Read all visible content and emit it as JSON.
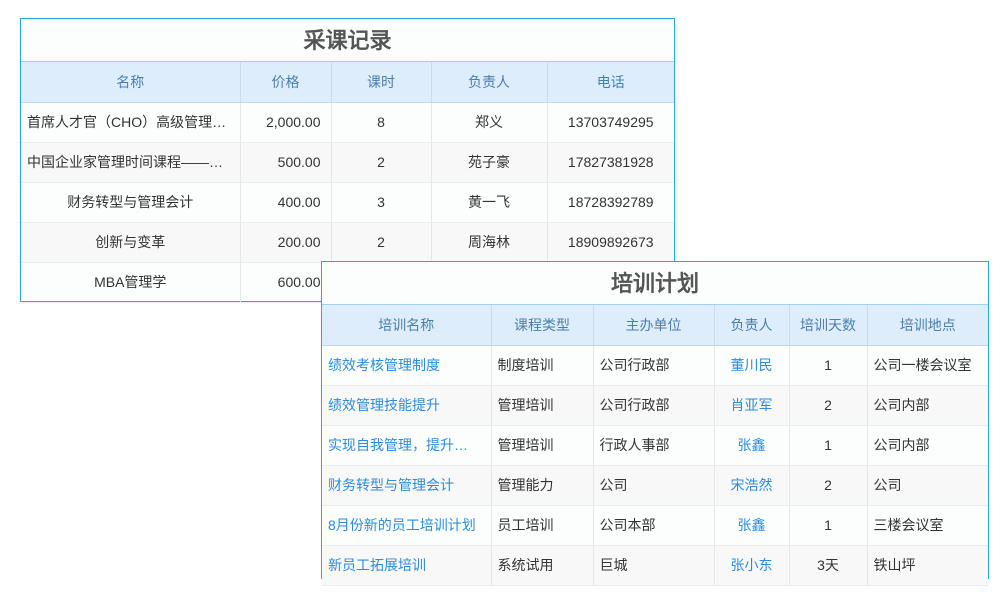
{
  "purchase": {
    "title": "采课记录",
    "columns": [
      "名称",
      "价格",
      "课时",
      "负责人",
      "电话"
    ],
    "rows": [
      [
        "首席人才官（CHO）高级管理…",
        "2,000.00",
        "8",
        "郑义",
        "13703749295"
      ],
      [
        "中国企业家管理时间课程——…",
        "500.00",
        "2",
        "苑子豪",
        "17827381928"
      ],
      [
        "财务转型与管理会计",
        "400.00",
        "3",
        "黄一飞",
        "18728392789"
      ],
      [
        "创新与变革",
        "200.00",
        "2",
        "周海林",
        "18909892673"
      ],
      [
        "MBA管理学",
        "600.00",
        "",
        "",
        ""
      ]
    ]
  },
  "training": {
    "title": "培训计划",
    "columns": [
      "培训名称",
      "课程类型",
      "主办单位",
      "负责人",
      "培训天数",
      "培训地点"
    ],
    "rows": [
      [
        "绩效考核管理制度",
        "制度培训",
        "公司行政部",
        "董川民",
        "1",
        "公司一楼会议室"
      ],
      [
        "绩效管理技能提升",
        "管理培训",
        "公司行政部",
        "肖亚军",
        "2",
        "公司内部"
      ],
      [
        "实现自我管理，提升…",
        "管理培训",
        "行政人事部",
        "张鑫",
        "1",
        "公司内部"
      ],
      [
        "财务转型与管理会计",
        "管理能力",
        "公司",
        "宋浩然",
        "2",
        "公司"
      ],
      [
        "8月份新的员工培训计划",
        "员工培训",
        "公司本部",
        "张鑫",
        "1",
        "三楼会议室"
      ],
      [
        "新员工拓展培训",
        "系统试用",
        "巨城",
        "张小东",
        "3天",
        "铁山坪"
      ]
    ]
  },
  "colors": {
    "border": "#2aa6e8",
    "header_bg": "#deedfb",
    "link": "#2d8ce0"
  }
}
